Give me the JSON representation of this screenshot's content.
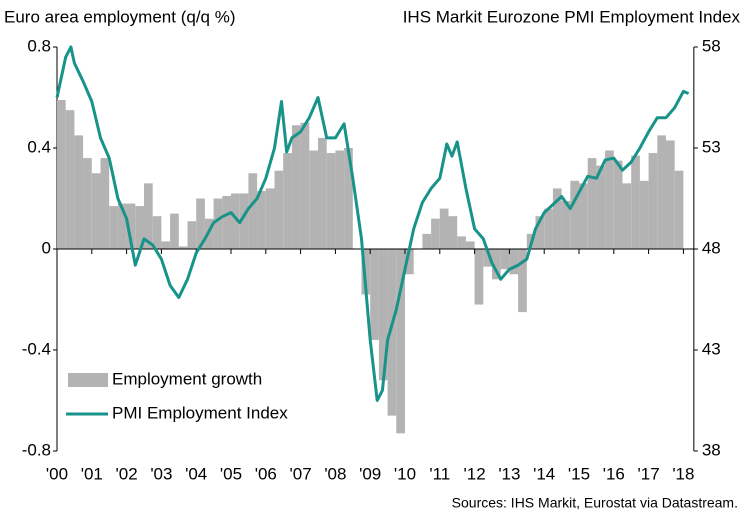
{
  "chart_data": {
    "type": "bar-line",
    "title_left": "Euro area employment (q/q %)",
    "title_right": "IHS Markit  Eurozone PMI Employment Index",
    "source": "Sources: IHS Markit, Eurostat via Datastream.",
    "xlim": [
      2000,
      2018.3
    ],
    "xticks": [
      {
        "value": 2000,
        "label": "'00"
      },
      {
        "value": 2001,
        "label": "'01"
      },
      {
        "value": 2002,
        "label": "'02"
      },
      {
        "value": 2003,
        "label": "'03"
      },
      {
        "value": 2004,
        "label": "'04"
      },
      {
        "value": 2005,
        "label": "'05"
      },
      {
        "value": 2006,
        "label": "'06"
      },
      {
        "value": 2007,
        "label": "'07"
      },
      {
        "value": 2008,
        "label": "'08"
      },
      {
        "value": 2009,
        "label": "'09"
      },
      {
        "value": 2010,
        "label": "'10"
      },
      {
        "value": 2011,
        "label": "'11"
      },
      {
        "value": 2012,
        "label": "'12"
      },
      {
        "value": 2013,
        "label": "'13"
      },
      {
        "value": 2014,
        "label": "'14"
      },
      {
        "value": 2015,
        "label": "'15"
      },
      {
        "value": 2016,
        "label": "'16"
      },
      {
        "value": 2017,
        "label": "'17"
      },
      {
        "value": 2018,
        "label": "'18"
      }
    ],
    "ylim": [
      -0.8,
      0.8
    ],
    "yticks": [
      -0.8,
      -0.4,
      0,
      0.4,
      0.8
    ],
    "y2lim": [
      38,
      58
    ],
    "y2ticks": [
      38,
      43,
      48,
      53,
      58
    ],
    "legend": "bottom-left",
    "series": [
      {
        "name": "Employment growth",
        "type": "bar",
        "color": "#b3b3b3",
        "x": [
          2000,
          2000.25,
          2000.5,
          2000.75,
          2001,
          2001.25,
          2001.5,
          2001.75,
          2002,
          2002.25,
          2002.5,
          2002.75,
          2003,
          2003.25,
          2003.5,
          2003.75,
          2004,
          2004.25,
          2004.5,
          2004.75,
          2005,
          2005.25,
          2005.5,
          2005.75,
          2006,
          2006.25,
          2006.5,
          2006.75,
          2007,
          2007.25,
          2007.5,
          2007.75,
          2008,
          2008.25,
          2008.5,
          2008.75,
          2009,
          2009.25,
          2009.5,
          2009.75,
          2010,
          2010.25,
          2010.5,
          2010.75,
          2011,
          2011.25,
          2011.5,
          2011.75,
          2012,
          2012.25,
          2012.5,
          2012.75,
          2013,
          2013.25,
          2013.5,
          2013.75,
          2014,
          2014.25,
          2014.5,
          2014.75,
          2015,
          2015.25,
          2015.5,
          2015.75,
          2016,
          2016.25,
          2016.5,
          2016.75,
          2017,
          2017.25,
          2017.5,
          2017.75
        ],
        "values": [
          0.59,
          0.55,
          0.45,
          0.36,
          0.3,
          0.36,
          0.17,
          0.18,
          0.18,
          0.17,
          0.26,
          0.13,
          0.03,
          0.14,
          0.01,
          0.11,
          0.2,
          0.12,
          0.2,
          0.21,
          0.22,
          0.22,
          0.3,
          0.23,
          0.24,
          0.31,
          0.38,
          0.49,
          0.5,
          0.39,
          0.44,
          0.38,
          0.39,
          0.4,
          0.0,
          -0.18,
          -0.36,
          -0.52,
          -0.66,
          -0.73,
          -0.1,
          0.0,
          0.06,
          0.12,
          0.16,
          0.13,
          0.05,
          0.03,
          -0.22,
          -0.07,
          -0.12,
          -0.08,
          -0.1,
          -0.25,
          0.06,
          0.13,
          0.16,
          0.24,
          0.19,
          0.27,
          0.26,
          0.36,
          0.33,
          0.39,
          0.35,
          0.26,
          0.37,
          0.27,
          0.38,
          0.45,
          0.43,
          0.31
        ]
      },
      {
        "name": "PMI Employment Index",
        "type": "line",
        "axis": "y2",
        "color": "#17938a",
        "x": [
          2000,
          2000.25,
          2000.4,
          2000.5,
          2000.75,
          2001,
          2001.25,
          2001.5,
          2001.75,
          2002,
          2002.25,
          2002.5,
          2002.75,
          2003,
          2003.25,
          2003.5,
          2003.75,
          2004,
          2004.25,
          2004.5,
          2004.75,
          2005,
          2005.25,
          2005.5,
          2005.75,
          2006,
          2006.25,
          2006.45,
          2006.6,
          2006.75,
          2007,
          2007.25,
          2007.5,
          2007.75,
          2008,
          2008.25,
          2008.5,
          2008.75,
          2009,
          2009.2,
          2009.35,
          2009.5,
          2009.75,
          2010,
          2010.25,
          2010.5,
          2010.75,
          2011,
          2011.2,
          2011.35,
          2011.5,
          2011.75,
          2012,
          2012.25,
          2012.5,
          2012.75,
          2013,
          2013.25,
          2013.5,
          2013.75,
          2014,
          2014.25,
          2014.5,
          2014.75,
          2015,
          2015.25,
          2015.5,
          2015.75,
          2016,
          2016.25,
          2016.5,
          2016.75,
          2017,
          2017.25,
          2017.5,
          2017.75,
          2018,
          2018.15
        ],
        "values": [
          55.5,
          57.5,
          58,
          57.2,
          56.3,
          55.3,
          53.5,
          52.5,
          50.5,
          49.5,
          47.2,
          48.5,
          48.2,
          47.5,
          46.2,
          45.6,
          46.5,
          47.8,
          48.5,
          49.3,
          49.6,
          49.8,
          49.3,
          50.0,
          50.5,
          51.5,
          53.0,
          55.3,
          52.8,
          53.5,
          53.8,
          54.5,
          55.5,
          53.5,
          53.5,
          54.2,
          51.5,
          48.5,
          43.5,
          40.5,
          41.0,
          43.5,
          45.0,
          47.0,
          49.0,
          50.3,
          51.0,
          51.5,
          53.2,
          52.6,
          53.3,
          51.0,
          49.0,
          48.5,
          47.3,
          46.5,
          47.0,
          47.2,
          47.5,
          49.0,
          49.8,
          50.2,
          50.6,
          50.0,
          50.8,
          51.6,
          51.5,
          52.4,
          52.5,
          51.9,
          52.3,
          53.0,
          53.8,
          54.5,
          54.5,
          55.0,
          55.8,
          55.7
        ]
      }
    ]
  }
}
